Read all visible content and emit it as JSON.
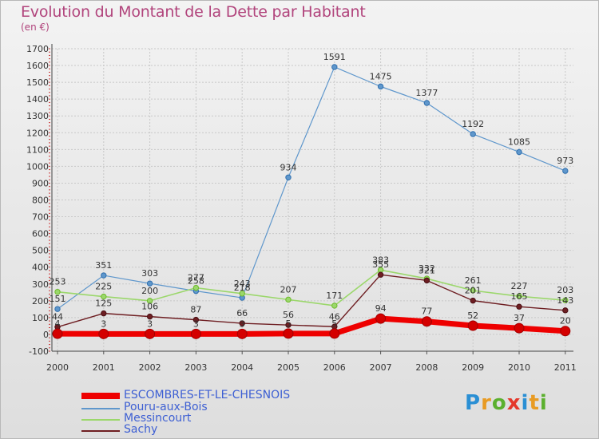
{
  "title": "Evolution du Montant de la Dette par Habitant",
  "unit_label": "(en €)",
  "logo_text": "Proxiti",
  "chart_data": {
    "type": "line",
    "x": [
      "2000",
      "2001",
      "2002",
      "2003",
      "2004",
      "2005",
      "2006",
      "2007",
      "2008",
      "2009",
      "2010",
      "2011"
    ],
    "ylim": [
      -100,
      1700
    ],
    "yticks": [
      -100,
      0,
      100,
      200,
      300,
      400,
      500,
      600,
      700,
      800,
      900,
      1000,
      1100,
      1200,
      1300,
      1400,
      1500,
      1600,
      1700
    ],
    "grid": true,
    "legend_position": "bottom-left",
    "series": [
      {
        "name": "ESCOMBRES-ET-LE-CHESNOIS",
        "color": "#ee0000",
        "values": [
          4,
          3,
          3,
          3,
          3,
          5,
          5,
          94,
          77,
          52,
          37,
          20
        ]
      },
      {
        "name": "Pouru-aux-Bois",
        "color": "#5f97cc",
        "values": [
          151,
          351,
          303,
          258,
          218,
          934,
          1591,
          1475,
          1377,
          1192,
          1085,
          973
        ]
      },
      {
        "name": "Messincourt",
        "color": "#9bd76b",
        "values": [
          253,
          225,
          200,
          277,
          243,
          207,
          171,
          383,
          332,
          261,
          227,
          203
        ]
      },
      {
        "name": "Sachy",
        "color": "#6e1e22",
        "values": [
          44,
          125,
          106,
          87,
          66,
          56,
          46,
          355,
          321,
          201,
          165,
          143
        ]
      }
    ]
  }
}
